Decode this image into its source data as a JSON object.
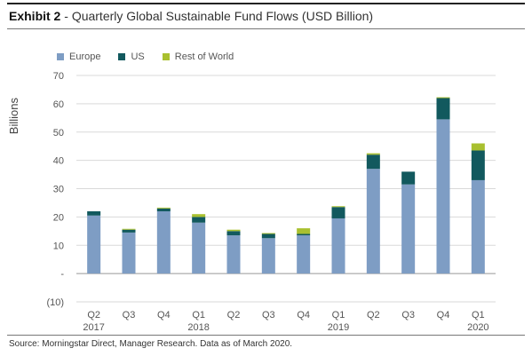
{
  "header": {
    "exhibit": "Exhibit 2",
    "separator": " - ",
    "title": "Quarterly Global Sustainable Fund Flows (USD Billion)"
  },
  "footer": {
    "source": "Source: Morningstar Direct, Manager Research. Data as of March 2020."
  },
  "colors": {
    "europe": "#7e9dc4",
    "us": "#12595e",
    "rest_of_world": "#a9c02f",
    "gridline": "#d9d9d9",
    "axis": "#999999"
  },
  "chart_data": {
    "type": "bar",
    "stacked": true,
    "title": "Quarterly Global Sustainable Fund Flows (USD Billion)",
    "ylabel": "Billions",
    "xlabel": "",
    "ylim": [
      -10,
      70
    ],
    "yticks": [
      -10,
      0,
      10,
      20,
      30,
      40,
      50,
      60,
      70
    ],
    "ytick_labels": [
      "(10)",
      "-",
      "10",
      "20",
      "30",
      "40",
      "50",
      "60",
      "70"
    ],
    "grid": true,
    "legend_position": "top-left",
    "categories": [
      "Q2 2017",
      "Q3",
      "Q4",
      "Q1 2018",
      "Q2",
      "Q3",
      "Q4",
      "Q1 2019",
      "Q2",
      "Q3",
      "Q4",
      "Q1 2020"
    ],
    "tick_labels": [
      [
        "Q2",
        "2017"
      ],
      [
        "Q3",
        ""
      ],
      [
        "Q4",
        ""
      ],
      [
        "Q1",
        "2018"
      ],
      [
        "Q2",
        ""
      ],
      [
        "Q3",
        ""
      ],
      [
        "Q4",
        ""
      ],
      [
        "Q1",
        "2019"
      ],
      [
        "Q2",
        ""
      ],
      [
        "Q3",
        ""
      ],
      [
        "Q4",
        ""
      ],
      [
        "Q1",
        "2020"
      ]
    ],
    "series": [
      {
        "name": "Europe",
        "color": "#7e9dc4",
        "values": [
          20.5,
          14.5,
          22,
          18,
          13.5,
          12.5,
          13.5,
          19.5,
          37,
          31.5,
          54.5,
          33
        ]
      },
      {
        "name": "US",
        "color": "#12595e",
        "values": [
          1.5,
          1,
          1,
          2,
          1.5,
          1.5,
          0.5,
          4,
          5,
          4.5,
          7.5,
          10.5
        ]
      },
      {
        "name": "Rest of World",
        "color": "#a9c02f",
        "values": [
          0,
          0.3,
          0.3,
          1,
          0.5,
          0.3,
          2,
          0.3,
          0.5,
          0,
          0.3,
          2.5
        ]
      }
    ]
  }
}
